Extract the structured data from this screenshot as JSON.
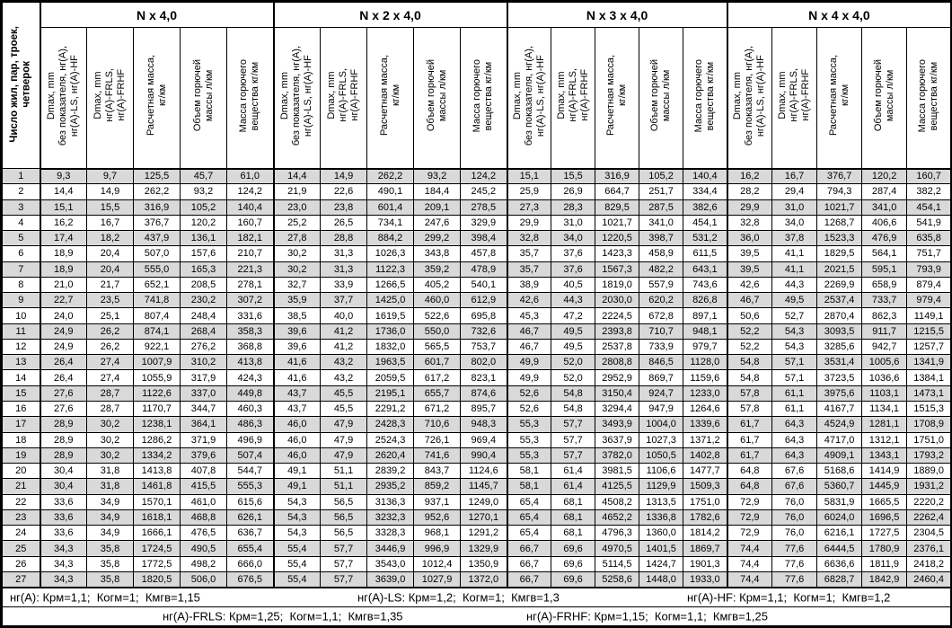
{
  "table": {
    "row_header": "Число жил, пар, троек,\nчетверок",
    "groups": [
      "N x 4,0",
      "N x 2 x 4,0",
      "N x 3 x 4,0",
      "N x 4 x 4,0"
    ],
    "subheaders": [
      "Dmax, mm\nбез показателя, нг(А),\nнг(А)-LS, нг(А)-HF",
      "Dmax, mm\nнг(А)-FRLS,\nнг(А)-FRHF",
      "Расчетная масса,\nкг/км",
      "Объем горючей\nмассы л/км",
      "Масса горючего\nвещества кг/км"
    ],
    "rows": [
      [
        "1",
        "9,3",
        "9,7",
        "125,5",
        "45,7",
        "61,0",
        "14,4",
        "14,9",
        "262,2",
        "93,2",
        "124,2",
        "15,1",
        "15,5",
        "316,9",
        "105,2",
        "140,4",
        "16,2",
        "16,7",
        "376,7",
        "120,2",
        "160,7"
      ],
      [
        "2",
        "14,4",
        "14,9",
        "262,2",
        "93,2",
        "124,2",
        "21,9",
        "22,6",
        "490,1",
        "184,4",
        "245,2",
        "25,9",
        "26,9",
        "664,7",
        "251,7",
        "334,4",
        "28,2",
        "29,4",
        "794,3",
        "287,4",
        "382,2"
      ],
      [
        "3",
        "15,1",
        "15,5",
        "316,9",
        "105,2",
        "140,4",
        "23,0",
        "23,8",
        "601,4",
        "209,1",
        "278,5",
        "27,3",
        "28,3",
        "829,5",
        "287,5",
        "382,6",
        "29,9",
        "31,0",
        "1021,7",
        "341,0",
        "454,1"
      ],
      [
        "4",
        "16,2",
        "16,7",
        "376,7",
        "120,2",
        "160,7",
        "25,2",
        "26,5",
        "734,1",
        "247,6",
        "329,9",
        "29,9",
        "31,0",
        "1021,7",
        "341,0",
        "454,1",
        "32,8",
        "34,0",
        "1268,7",
        "406,6",
        "541,9"
      ],
      [
        "5",
        "17,4",
        "18,2",
        "437,9",
        "136,1",
        "182,1",
        "27,8",
        "28,8",
        "884,2",
        "299,2",
        "398,4",
        "32,8",
        "34,0",
        "1220,5",
        "398,7",
        "531,2",
        "36,0",
        "37,8",
        "1523,3",
        "476,9",
        "635,8"
      ],
      [
        "6",
        "18,9",
        "20,4",
        "507,0",
        "157,6",
        "210,7",
        "30,2",
        "31,3",
        "1026,3",
        "343,8",
        "457,8",
        "35,7",
        "37,6",
        "1423,3",
        "458,9",
        "611,5",
        "39,5",
        "41,1",
        "1829,5",
        "564,1",
        "751,7"
      ],
      [
        "7",
        "18,9",
        "20,4",
        "555,0",
        "165,3",
        "221,3",
        "30,2",
        "31,3",
        "1122,3",
        "359,2",
        "478,9",
        "35,7",
        "37,6",
        "1567,3",
        "482,2",
        "643,1",
        "39,5",
        "41,1",
        "2021,5",
        "595,1",
        "793,9"
      ],
      [
        "8",
        "21,0",
        "21,7",
        "652,1",
        "208,5",
        "278,1",
        "32,7",
        "33,9",
        "1266,5",
        "405,2",
        "540,1",
        "38,9",
        "40,5",
        "1819,0",
        "557,9",
        "743,6",
        "42,6",
        "44,3",
        "2269,9",
        "658,9",
        "879,4"
      ],
      [
        "9",
        "22,7",
        "23,5",
        "741,8",
        "230,2",
        "307,2",
        "35,9",
        "37,7",
        "1425,0",
        "460,0",
        "612,9",
        "42,6",
        "44,3",
        "2030,0",
        "620,2",
        "826,8",
        "46,7",
        "49,5",
        "2537,4",
        "733,7",
        "979,4"
      ],
      [
        "10",
        "24,0",
        "25,1",
        "807,4",
        "248,4",
        "331,6",
        "38,5",
        "40,0",
        "1619,5",
        "522,6",
        "695,8",
        "45,3",
        "47,2",
        "2224,5",
        "672,8",
        "897,1",
        "50,6",
        "52,7",
        "2870,4",
        "862,3",
        "1149,1"
      ],
      [
        "11",
        "24,9",
        "26,2",
        "874,1",
        "268,4",
        "358,3",
        "39,6",
        "41,2",
        "1736,0",
        "550,0",
        "732,6",
        "46,7",
        "49,5",
        "2393,8",
        "710,7",
        "948,1",
        "52,2",
        "54,3",
        "3093,5",
        "911,7",
        "1215,5"
      ],
      [
        "12",
        "24,9",
        "26,2",
        "922,1",
        "276,2",
        "368,8",
        "39,6",
        "41,2",
        "1832,0",
        "565,5",
        "753,7",
        "46,7",
        "49,5",
        "2537,8",
        "733,9",
        "979,7",
        "52,2",
        "54,3",
        "3285,6",
        "942,7",
        "1257,7"
      ],
      [
        "13",
        "26,4",
        "27,4",
        "1007,9",
        "310,2",
        "413,8",
        "41,6",
        "43,2",
        "1963,5",
        "601,7",
        "802,0",
        "49,9",
        "52,0",
        "2808,8",
        "846,5",
        "1128,0",
        "54,8",
        "57,1",
        "3531,4",
        "1005,6",
        "1341,9"
      ],
      [
        "14",
        "26,4",
        "27,4",
        "1055,9",
        "317,9",
        "424,3",
        "41,6",
        "43,2",
        "2059,5",
        "617,2",
        "823,1",
        "49,9",
        "52,0",
        "2952,9",
        "869,7",
        "1159,6",
        "54,8",
        "57,1",
        "3723,5",
        "1036,6",
        "1384,1"
      ],
      [
        "15",
        "27,6",
        "28,7",
        "1122,6",
        "337,0",
        "449,8",
        "43,7",
        "45,5",
        "2195,1",
        "655,7",
        "874,6",
        "52,6",
        "54,8",
        "3150,4",
        "924,7",
        "1233,0",
        "57,8",
        "61,1",
        "3975,6",
        "1103,1",
        "1473,1"
      ],
      [
        "16",
        "27,6",
        "28,7",
        "1170,7",
        "344,7",
        "460,3",
        "43,7",
        "45,5",
        "2291,2",
        "671,2",
        "895,7",
        "52,6",
        "54,8",
        "3294,4",
        "947,9",
        "1264,6",
        "57,8",
        "61,1",
        "4167,7",
        "1134,1",
        "1515,3"
      ],
      [
        "17",
        "28,9",
        "30,2",
        "1238,1",
        "364,1",
        "486,3",
        "46,0",
        "47,9",
        "2428,3",
        "710,6",
        "948,3",
        "55,3",
        "57,7",
        "3493,9",
        "1004,0",
        "1339,6",
        "61,7",
        "64,3",
        "4524,9",
        "1281,1",
        "1708,9"
      ],
      [
        "18",
        "28,9",
        "30,2",
        "1286,2",
        "371,9",
        "496,9",
        "46,0",
        "47,9",
        "2524,3",
        "726,1",
        "969,4",
        "55,3",
        "57,7",
        "3637,9",
        "1027,3",
        "1371,2",
        "61,7",
        "64,3",
        "4717,0",
        "1312,1",
        "1751,0"
      ],
      [
        "19",
        "28,9",
        "30,2",
        "1334,2",
        "379,6",
        "507,4",
        "46,0",
        "47,9",
        "2620,4",
        "741,6",
        "990,4",
        "55,3",
        "57,7",
        "3782,0",
        "1050,5",
        "1402,8",
        "61,7",
        "64,3",
        "4909,1",
        "1343,1",
        "1793,2"
      ],
      [
        "20",
        "30,4",
        "31,8",
        "1413,8",
        "407,8",
        "544,7",
        "49,1",
        "51,1",
        "2839,2",
        "843,7",
        "1124,6",
        "58,1",
        "61,4",
        "3981,5",
        "1106,6",
        "1477,7",
        "64,8",
        "67,6",
        "5168,6",
        "1414,9",
        "1889,0"
      ],
      [
        "21",
        "30,4",
        "31,8",
        "1461,8",
        "415,5",
        "555,3",
        "49,1",
        "51,1",
        "2935,2",
        "859,2",
        "1145,7",
        "58,1",
        "61,4",
        "4125,5",
        "1129,9",
        "1509,3",
        "64,8",
        "67,6",
        "5360,7",
        "1445,9",
        "1931,2"
      ],
      [
        "22",
        "33,6",
        "34,9",
        "1570,1",
        "461,0",
        "615,6",
        "54,3",
        "56,5",
        "3136,3",
        "937,1",
        "1249,0",
        "65,4",
        "68,1",
        "4508,2",
        "1313,5",
        "1751,0",
        "72,9",
        "76,0",
        "5831,9",
        "1665,5",
        "2220,2"
      ],
      [
        "23",
        "33,6",
        "34,9",
        "1618,1",
        "468,8",
        "626,1",
        "54,3",
        "56,5",
        "3232,3",
        "952,6",
        "1270,1",
        "65,4",
        "68,1",
        "4652,2",
        "1336,8",
        "1782,6",
        "72,9",
        "76,0",
        "6024,0",
        "1696,5",
        "2262,4"
      ],
      [
        "24",
        "33,6",
        "34,9",
        "1666,1",
        "476,5",
        "636,7",
        "54,3",
        "56,5",
        "3328,3",
        "968,1",
        "1291,2",
        "65,4",
        "68,1",
        "4796,3",
        "1360,0",
        "1814,2",
        "72,9",
        "76,0",
        "6216,1",
        "1727,5",
        "2304,5"
      ],
      [
        "25",
        "34,3",
        "35,8",
        "1724,5",
        "490,5",
        "655,4",
        "55,4",
        "57,7",
        "3446,9",
        "996,9",
        "1329,9",
        "66,7",
        "69,6",
        "4970,5",
        "1401,5",
        "1869,7",
        "74,4",
        "77,6",
        "6444,5",
        "1780,9",
        "2376,1"
      ],
      [
        "26",
        "34,3",
        "35,8",
        "1772,5",
        "498,2",
        "666,0",
        "55,4",
        "57,7",
        "3543,0",
        "1012,4",
        "1350,9",
        "66,7",
        "69,6",
        "5114,5",
        "1424,7",
        "1901,3",
        "74,4",
        "77,6",
        "6636,6",
        "1811,9",
        "2418,2"
      ],
      [
        "27",
        "34,3",
        "35,8",
        "1820,5",
        "506,0",
        "676,5",
        "55,4",
        "57,7",
        "3639,0",
        "1027,9",
        "1372,0",
        "66,7",
        "69,6",
        "5258,6",
        "1448,0",
        "1933,0",
        "74,4",
        "77,6",
        "6828,7",
        "1842,9",
        "2460,4"
      ]
    ],
    "footnotes": {
      "row1": [
        "нг(А): Крм=1,1;  Когм=1;  Кмгв=1,15",
        "нг(А)-LS: Крм=1,2;  Когм=1;  Кмгв=1,3",
        "нг(А)-HF: Крм=1,1;  Когм=1;  Кмгв=1,2"
      ],
      "row2": [
        "нг(А)-FRLS: Крм=1,25;  Когм=1,1;  Кмгв=1,35",
        "нг(А)-FRHF: Крм=1,15;  Когм=1,1;  Кмгв=1,25"
      ]
    },
    "colors": {
      "stripe_row": "#d9d9d9",
      "border": "#000000",
      "background": "#ffffff",
      "text": "#000000"
    }
  }
}
